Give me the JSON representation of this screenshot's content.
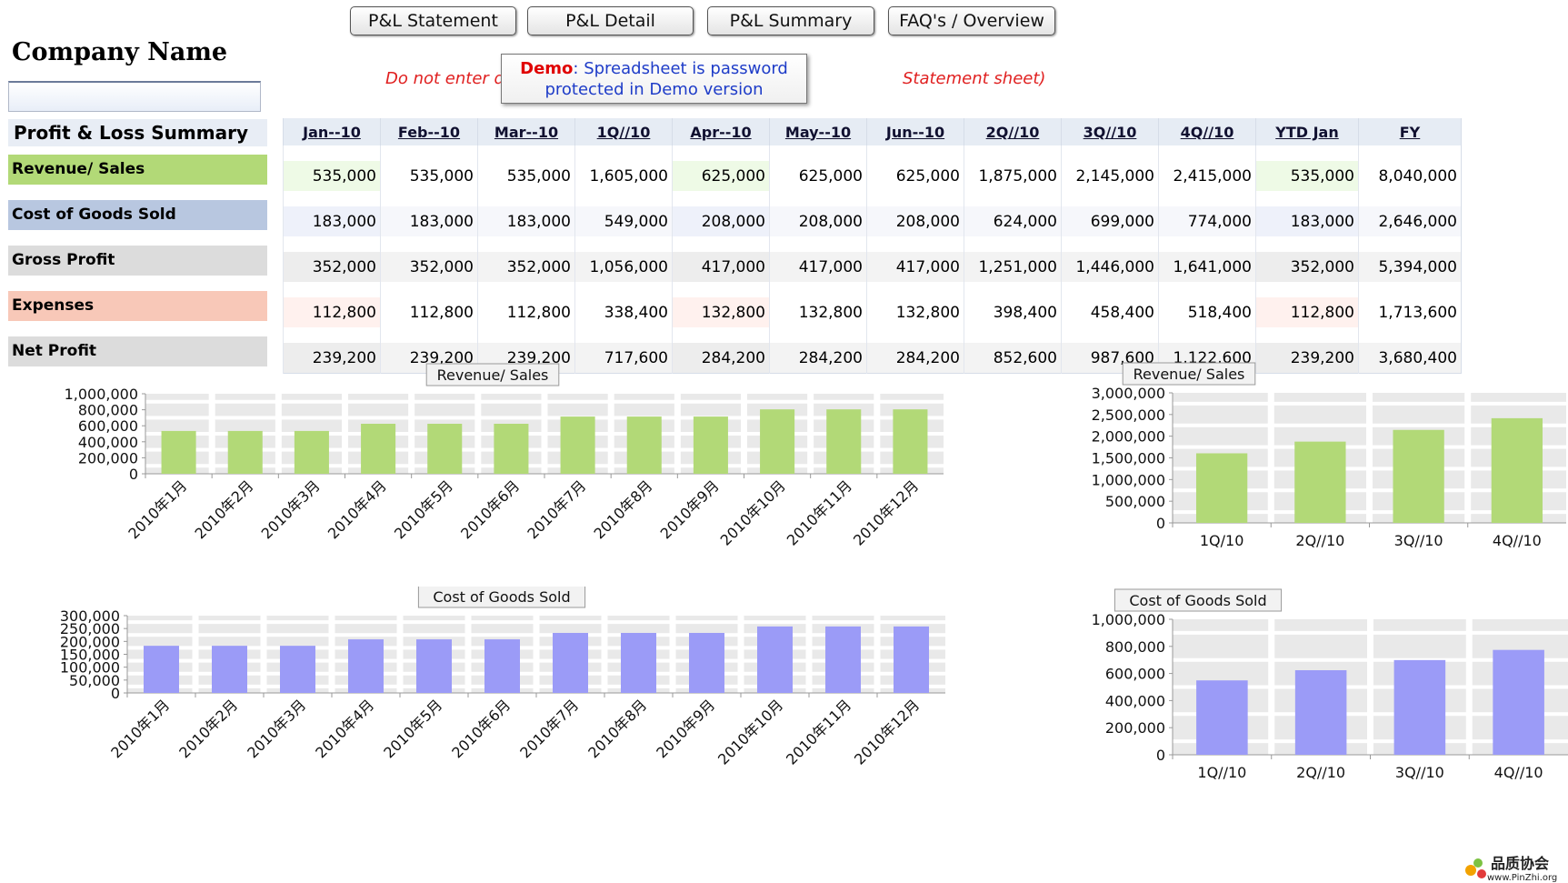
{
  "nav": {
    "buttons": [
      "P&L Statement",
      "P&L Detail",
      "P&L Summary",
      "FAQ's / Overview"
    ]
  },
  "company": {
    "name": "Company Name",
    "input_value": ""
  },
  "warning": {
    "left": "Do not enter d",
    "right": "Statement sheet)"
  },
  "demo": {
    "label": "Demo",
    "line1": ": Spreadsheet is password",
    "line2": "protected in Demo version"
  },
  "summary": {
    "title": "Profit & Loss Summary",
    "columns": [
      "Jan--10",
      "Feb--10",
      "Mar--10",
      "1Q//10",
      "Apr--10",
      "May--10",
      "Jun--10",
      "2Q//10",
      "3Q//10",
      "4Q//10",
      "YTD Jan",
      "FY"
    ],
    "rows": [
      {
        "label": "Revenue/ Sales",
        "color": "#b2d977",
        "values": [
          "535,000",
          "535,000",
          "535,000",
          "1,605,000",
          "625,000",
          "625,000",
          "625,000",
          "1,875,000",
          "2,145,000",
          "2,415,000",
          "535,000",
          "8,040,000"
        ]
      },
      {
        "label": "Cost of Goods Sold",
        "color": "#b8c7e0",
        "values": [
          "183,000",
          "183,000",
          "183,000",
          "549,000",
          "208,000",
          "208,000",
          "208,000",
          "624,000",
          "699,000",
          "774,000",
          "183,000",
          "2,646,000"
        ]
      },
      {
        "label": "Gross Profit",
        "color": "#dcdcdc",
        "values": [
          "352,000",
          "352,000",
          "352,000",
          "1,056,000",
          "417,000",
          "417,000",
          "417,000",
          "1,251,000",
          "1,446,000",
          "1,641,000",
          "352,000",
          "5,394,000"
        ]
      },
      {
        "label": "Expenses",
        "color": "#f8c8b8",
        "values": [
          "112,800",
          "112,800",
          "112,800",
          "338,400",
          "132,800",
          "132,800",
          "132,800",
          "398,400",
          "458,400",
          "518,400",
          "112,800",
          "1,713,600"
        ]
      },
      {
        "label": "Net Profit",
        "color": "#dcdcdc",
        "values": [
          "239,200",
          "239,200",
          "239,200",
          "717,600",
          "284,200",
          "284,200",
          "284,200",
          "852,600",
          "987,600",
          "1,122,600",
          "239,200",
          "3,680,400"
        ]
      }
    ]
  },
  "chart_data": [
    {
      "type": "bar",
      "title": "Revenue/ Sales",
      "color": "#b2d977",
      "categories": [
        "2010年1月",
        "2010年2月",
        "2010年3月",
        "2010年4月",
        "2010年5月",
        "2010年6月",
        "2010年7月",
        "2010年8月",
        "2010年9月",
        "2010年10月",
        "2010年11月",
        "2010年12月"
      ],
      "values": [
        535000,
        535000,
        535000,
        625000,
        625000,
        625000,
        715000,
        715000,
        715000,
        805000,
        805000,
        805000
      ],
      "ylim": [
        0,
        1000000
      ],
      "yticks": [
        "1,000,000",
        "800,000",
        "600,000",
        "400,000",
        "200,000",
        "0"
      ],
      "rotate": true
    },
    {
      "type": "bar",
      "title": "Revenue/ Sales",
      "color": "#b2d977",
      "categories": [
        "1Q/10",
        "2Q//10",
        "3Q//10",
        "4Q//10"
      ],
      "values": [
        1605000,
        1875000,
        2145000,
        2415000
      ],
      "ylim": [
        0,
        3000000
      ],
      "yticks": [
        "3,000,000",
        "2,500,000",
        "2,000,000",
        "1,500,000",
        "1,000,000",
        "500,000",
        "0"
      ],
      "rotate": false
    },
    {
      "type": "bar",
      "title": "Cost of Goods Sold",
      "color": "#9b9bf7",
      "categories": [
        "2010年1月",
        "2010年2月",
        "2010年3月",
        "2010年4月",
        "2010年5月",
        "2010年6月",
        "2010年7月",
        "2010年8月",
        "2010年9月",
        "2010年10月",
        "2010年11月",
        "2010年12月"
      ],
      "values": [
        183000,
        183000,
        183000,
        208000,
        208000,
        208000,
        233000,
        233000,
        233000,
        258000,
        258000,
        258000
      ],
      "ylim": [
        0,
        300000
      ],
      "yticks": [
        "300,000",
        "250,000",
        "200,000",
        "150,000",
        "100,000",
        "50,000",
        "0"
      ],
      "rotate": true
    },
    {
      "type": "bar",
      "title": "Cost of Goods Sold",
      "color": "#9b9bf7",
      "categories": [
        "1Q//10",
        "2Q//10",
        "3Q//10",
        "4Q//10"
      ],
      "values": [
        549000,
        624000,
        699000,
        774000
      ],
      "ylim": [
        0,
        1000000
      ],
      "yticks": [
        "1,000,000",
        "800,000",
        "600,000",
        "400,000",
        "200,000",
        "0"
      ],
      "rotate": false
    }
  ],
  "watermark": {
    "text": "品质协会",
    "url": "www.PinZhi.org"
  }
}
